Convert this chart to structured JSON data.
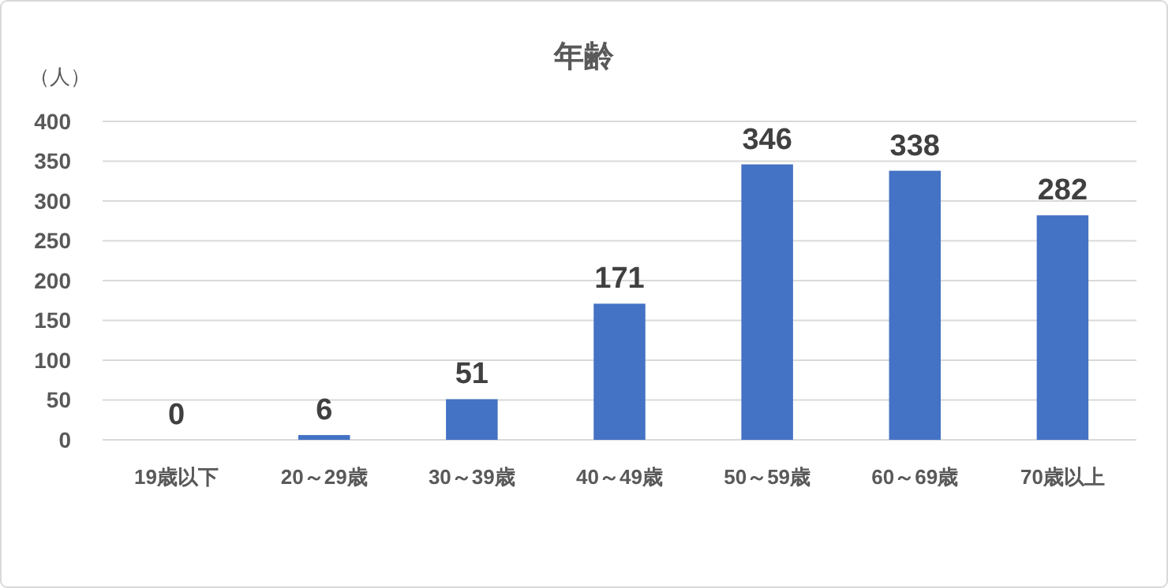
{
  "chart_data": {
    "type": "bar",
    "title": "年齢",
    "ylabel": "（人）",
    "categories": [
      "19歳以下",
      "20～29歳",
      "30～39歳",
      "40～49歳",
      "50～59歳",
      "60～69歳",
      "70歳以上"
    ],
    "values": [
      0,
      6,
      51,
      171,
      346,
      338,
      282
    ],
    "color": "#4472c4",
    "ylim": [
      0,
      400
    ],
    "yticks": [
      0,
      50,
      100,
      150,
      200,
      250,
      300,
      350,
      400
    ],
    "grid": "y",
    "data_labels": true
  }
}
